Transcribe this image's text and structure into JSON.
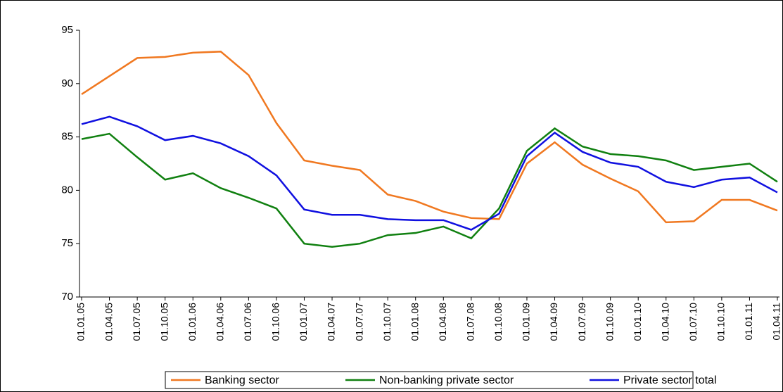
{
  "chart_data": {
    "type": "line",
    "categories": [
      "01.01.05",
      "01.04.05",
      "01.07.05",
      "01.10.05",
      "01.01.06",
      "01.04.06",
      "01.07.06",
      "01.10.06",
      "01.01.07",
      "01.04.07",
      "01.07.07",
      "01.10.07",
      "01.01.08",
      "01.04.08",
      "01.07.08",
      "01.10.08",
      "01.01.09",
      "01.04.09",
      "01.07.09",
      "01.10.09",
      "01.01.10",
      "01.04.10",
      "01.07.10",
      "01.10.10",
      "01.01.11",
      "01.04.11"
    ],
    "series": [
      {
        "name": "Banking sector",
        "color": "#f07820",
        "values": [
          89.0,
          90.7,
          92.4,
          92.5,
          92.9,
          93.0,
          90.8,
          86.3,
          82.8,
          82.3,
          81.9,
          79.6,
          79.0,
          78.0,
          77.4,
          77.3,
          82.5,
          84.5,
          82.4,
          81.1,
          79.9,
          77.0,
          77.1,
          79.1,
          79.1,
          78.1
        ]
      },
      {
        "name": "Non-banking private sector",
        "color": "#108010",
        "values": [
          84.8,
          85.3,
          83.1,
          81.0,
          81.6,
          80.2,
          79.3,
          78.3,
          75.0,
          74.7,
          75.0,
          75.8,
          76.0,
          76.6,
          75.5,
          78.3,
          83.7,
          85.8,
          84.1,
          83.4,
          83.2,
          82.8,
          81.9,
          82.2,
          82.5,
          80.8
        ]
      },
      {
        "name": "Private sector total",
        "color": "#1010e0",
        "values": [
          86.2,
          86.9,
          86.0,
          84.7,
          85.1,
          84.4,
          83.2,
          81.4,
          78.2,
          77.7,
          77.7,
          77.3,
          77.2,
          77.2,
          76.3,
          77.8,
          83.2,
          85.4,
          83.6,
          82.6,
          82.2,
          80.8,
          80.3,
          81.0,
          81.2,
          79.8
        ]
      }
    ],
    "ylim": [
      70,
      95
    ],
    "yticks": [
      70,
      75,
      80,
      85,
      90,
      95
    ],
    "legend": "bottom"
  }
}
